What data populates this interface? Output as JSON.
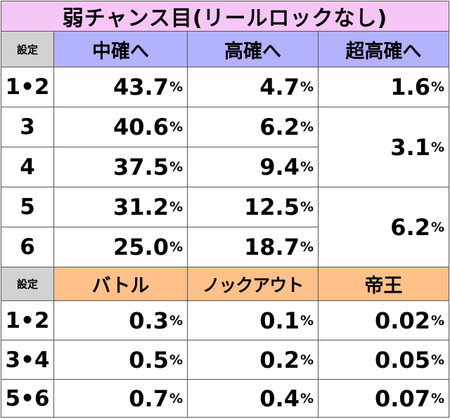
{
  "title": "弱チャンス目(リールロックなし)",
  "table1": {
    "header": {
      "setting_label": "設定",
      "col1": "中確へ",
      "col2": "高確へ",
      "col3": "超高確へ"
    },
    "rows": [
      {
        "setting": "1•2",
        "col1": "43.7",
        "col2": "4.7"
      },
      {
        "setting": "3",
        "col1": "40.6",
        "col2": "6.2"
      },
      {
        "setting": "4",
        "col1": "37.5",
        "col2": "9.4"
      },
      {
        "setting": "5",
        "col1": "31.2",
        "col2": "12.5"
      },
      {
        "setting": "6",
        "col1": "25.0",
        "col2": "18.7"
      }
    ],
    "col3_groups": [
      {
        "settings": "1•2",
        "value": "1.6"
      },
      {
        "settings": "3-4",
        "value": "3.1"
      },
      {
        "settings": "5-6",
        "value": "6.2"
      }
    ]
  },
  "table2": {
    "header": {
      "setting_label": "設定",
      "col1": "バトル",
      "col2": "ノックアウト",
      "col3": "帝王"
    },
    "rows": [
      {
        "setting": "1•2",
        "col1": "0.3",
        "col2": "0.1",
        "col3": "0.02"
      },
      {
        "setting": "3•4",
        "col1": "0.5",
        "col2": "0.2",
        "col3": "0.05"
      },
      {
        "setting": "5•6",
        "col1": "0.7",
        "col2": "0.4",
        "col3": "0.07"
      }
    ]
  },
  "unit": "%",
  "colors": {
    "title_bg": "#f6c6f6",
    "header_blue": "#b2b2ff",
    "header_orange": "#ffc08a",
    "label_gray": "#d2d2d2"
  }
}
